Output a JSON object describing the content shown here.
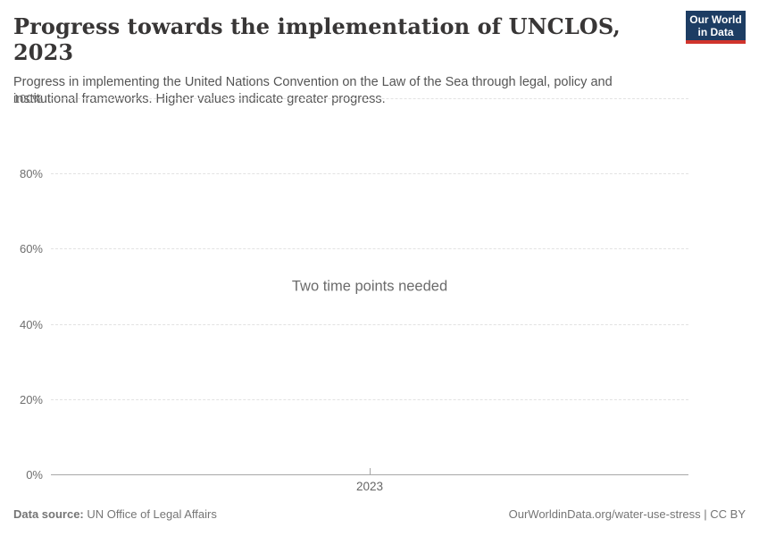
{
  "header": {
    "title": "Progress towards the implementation of UNCLOS, 2023",
    "subtitle": "Progress in implementing the United Nations Convention on the Law of the Sea through legal, policy and institutional frameworks. Higher values indicate greater progress.",
    "logo": {
      "line1": "Our World",
      "line2": "in Data",
      "bg_color": "#1d3d63",
      "stripe_color": "#d0342c"
    }
  },
  "chart_data": {
    "type": "line",
    "title": "Progress towards the implementation of UNCLOS, 2023",
    "empty_message": "Two time points needed",
    "series": [],
    "x_ticks": [
      {
        "label": "2023",
        "position": 0.5
      }
    ],
    "y_ticks": [
      {
        "value": 0,
        "label": "0%"
      },
      {
        "value": 20,
        "label": "20%"
      },
      {
        "value": 40,
        "label": "40%"
      },
      {
        "value": 60,
        "label": "60%"
      },
      {
        "value": 80,
        "label": "80%"
      },
      {
        "value": 100,
        "label": "100%"
      }
    ],
    "ylim": [
      0,
      100
    ],
    "grid": true,
    "legend": false,
    "grid_color": "#e2e2e2",
    "axis_color": "#a7a7a7"
  },
  "footer": {
    "datasource_label": "Data source:",
    "datasource_value": "UN Office of Legal Affairs",
    "attribution": "OurWorldinData.org/water-use-stress | CC BY"
  }
}
